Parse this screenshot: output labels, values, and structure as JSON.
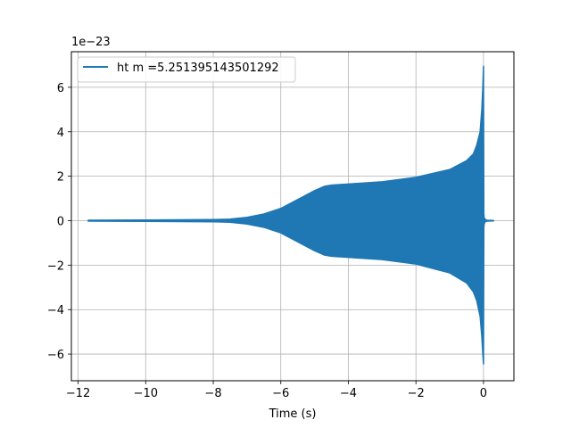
{
  "chart_data": {
    "type": "area",
    "title": "",
    "xlabel": "Time (s)",
    "ylabel": "",
    "y_offset_label": "1e−23",
    "y_scale": 1e-23,
    "xlim": [
      -12.2,
      0.9
    ],
    "ylim": [
      -7.2,
      7.6
    ],
    "xticks": [
      -12,
      -10,
      -8,
      -6,
      -4,
      -2,
      0
    ],
    "xtick_labels": [
      "−12",
      "−10",
      "−8",
      "−6",
      "−4",
      "−2",
      "0"
    ],
    "yticks": [
      -6,
      -4,
      -2,
      0,
      2,
      4,
      6
    ],
    "ytick_labels": [
      "−6",
      "−4",
      "−2",
      "0",
      "2",
      "4",
      "6"
    ],
    "grid": true,
    "legend_position": "upper-left",
    "series": [
      {
        "name": "ht m =5.251395143501292",
        "color": "#1f77b4",
        "envelope": {
          "t": [
            -11.7,
            -10,
            -8,
            -7.5,
            -7,
            -6.5,
            -6,
            -5.5,
            -5,
            -4.7,
            -4.5,
            -4,
            -3,
            -2,
            -1,
            -0.5,
            -0.3,
            -0.2,
            -0.1,
            -0.05,
            -0.02,
            0.0,
            0.01,
            0.02,
            0.05,
            0.1,
            0.3
          ],
          "upper": [
            0.02,
            0.03,
            0.05,
            0.07,
            0.15,
            0.3,
            0.55,
            0.95,
            1.35,
            1.55,
            1.6,
            1.65,
            1.75,
            1.95,
            2.3,
            2.7,
            3.0,
            3.4,
            4.0,
            5.0,
            6.0,
            6.95,
            0.3,
            0.15,
            0.05,
            0.02,
            0.01
          ],
          "lower": [
            -0.02,
            -0.03,
            -0.05,
            -0.07,
            -0.15,
            -0.3,
            -0.55,
            -0.95,
            -1.35,
            -1.55,
            -1.6,
            -1.65,
            -1.75,
            -1.95,
            -2.35,
            -2.8,
            -3.2,
            -3.6,
            -4.3,
            -5.2,
            -6.0,
            -6.45,
            -0.3,
            -0.15,
            -0.05,
            -0.02,
            -0.01
          ]
        }
      }
    ]
  }
}
